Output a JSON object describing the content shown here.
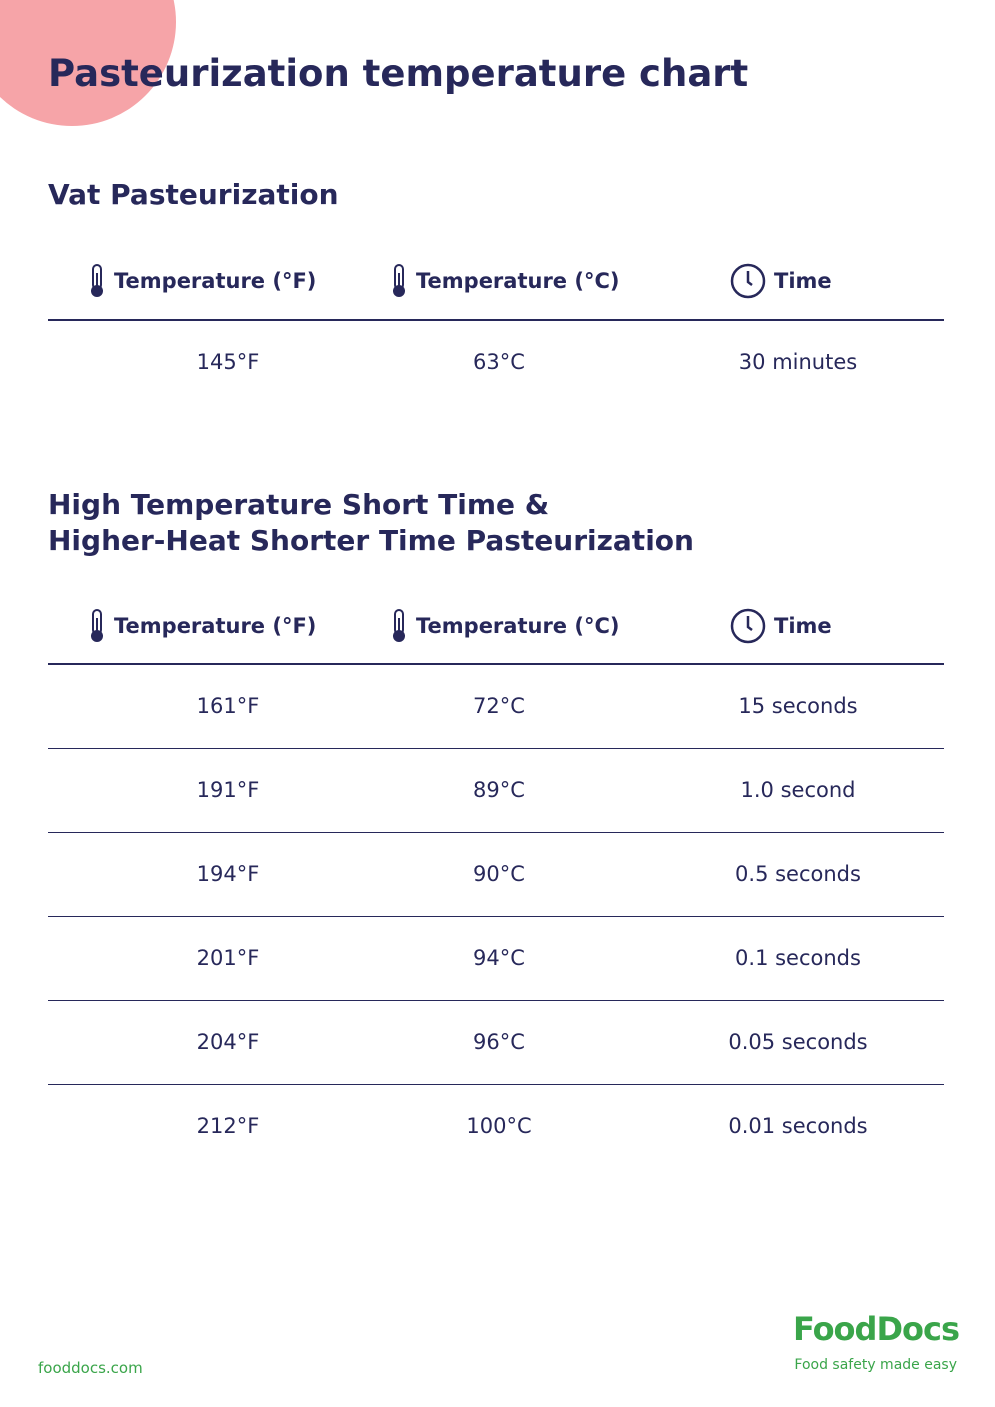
{
  "header": {
    "title": "Pasteurization temperature chart"
  },
  "sections": [
    {
      "title_lines": [
        "Vat Pasteurization"
      ],
      "table": {
        "columns": [
          "Temperature (°F)",
          "Temperature (°C)",
          "Time"
        ],
        "rows": [
          [
            "145°F",
            "63°C",
            "30 minutes"
          ]
        ]
      }
    },
    {
      "title_lines": [
        "High Temperature Short Time &",
        "Higher-Heat Shorter Time Pasteurization"
      ],
      "table": {
        "columns": [
          "Temperature (°F)",
          "Temperature (°C)",
          "Time"
        ],
        "rows": [
          [
            "161°F",
            "72°C",
            "15 seconds"
          ],
          [
            "191°F",
            "89°C",
            "1.0 second"
          ],
          [
            "194°F",
            "90°C",
            "0.5 seconds"
          ],
          [
            "201°F",
            "94°C",
            "0.1 seconds"
          ],
          [
            "204°F",
            "96°C",
            "0.05 seconds"
          ],
          [
            "212°F",
            "100°C",
            "0.01 seconds"
          ]
        ]
      }
    }
  ],
  "footer": {
    "url": "fooddocs.com",
    "logo": "FoodDocs",
    "tagline": "Food safety made easy"
  }
}
